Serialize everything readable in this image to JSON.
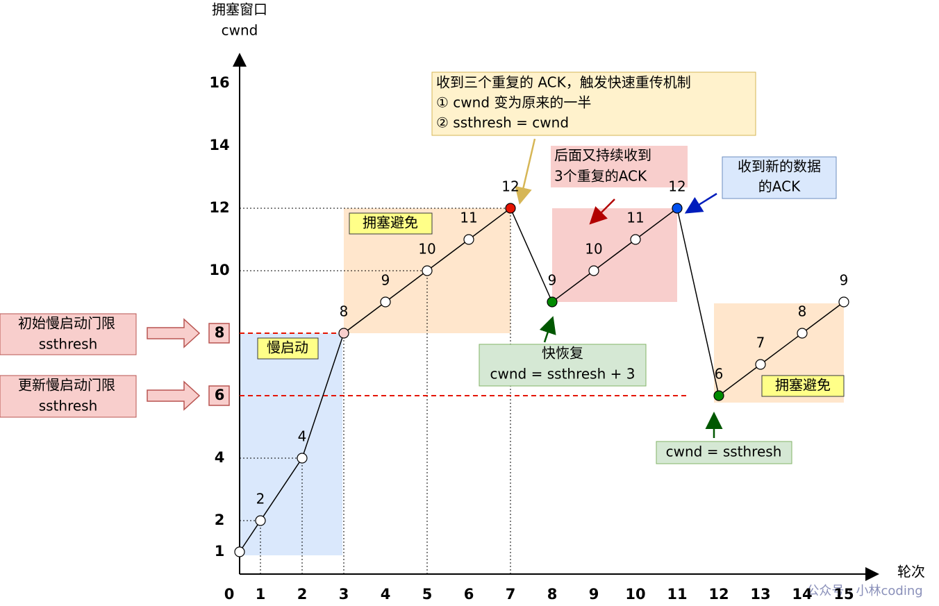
{
  "chart_data": {
    "type": "line",
    "y_label": [
      "拥塞窗口",
      "cwnd"
    ],
    "x_label": "轮次",
    "x": [
      0,
      1,
      2,
      3,
      4,
      5,
      6,
      7,
      8,
      9,
      10,
      11,
      12,
      13,
      14,
      15
    ],
    "values": [
      1,
      2,
      4,
      8,
      9,
      10,
      11,
      12,
      9,
      10,
      11,
      12,
      6,
      7,
      8,
      9
    ],
    "value_labels": [
      null,
      "2",
      "4",
      "8",
      "9",
      "10",
      "11",
      "12",
      "9",
      "10",
      "11",
      "12",
      "6",
      "7",
      "8",
      "9"
    ],
    "color": "#000000",
    "marker_colors": [
      "#ffffff",
      "#ffffff",
      "#ffffff",
      "#f8cecc",
      "#ffffff",
      "#ffffff",
      "#ffffff",
      "#e51400",
      "#008a00",
      "#ffffff",
      "#ffffff",
      "#0050ef",
      "#008a00",
      "#ffffff",
      "#ffffff",
      "#ffffff"
    ],
    "xticks": [
      0,
      1,
      2,
      3,
      4,
      5,
      6,
      7,
      8,
      9,
      10,
      11,
      12,
      13,
      14,
      15
    ],
    "yticks": [
      1,
      2,
      4,
      6,
      8,
      10,
      12,
      14,
      16
    ],
    "thresholds": [
      8,
      6
    ],
    "threshold_color": "#e51400",
    "annotations": {
      "fast_retransmit": [
        "收到三个重复的 ACK，触发快速重传机制",
        "① cwnd 变为原来的一半",
        "② ssthresh = cwnd"
      ],
      "repeat_ack": [
        "后面又持续收到",
        "3个重复的ACK"
      ],
      "new_ack": [
        "收到新的数据",
        "的ACK"
      ],
      "fast_recovery": [
        "快恢复",
        "cwnd = ssthresh + 3"
      ],
      "cwnd_eq": "cwnd = ssthresh",
      "slow_start": "慢启动",
      "avoid_1": "拥塞避免",
      "avoid_2": "拥塞避免",
      "init_ssthresh": [
        "初始慢启动门限",
        "ssthresh"
      ],
      "update_ssthresh": [
        "更新慢启动门限",
        "ssthresh"
      ]
    },
    "watermark": "公众号 · 小林coding"
  }
}
